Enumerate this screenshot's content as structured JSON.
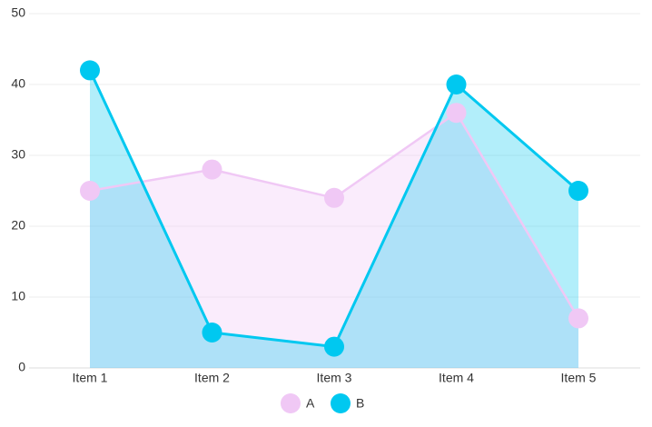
{
  "chart_data": {
    "type": "area",
    "categories": [
      "Item 1",
      "Item 2",
      "Item 3",
      "Item 4",
      "Item 5"
    ],
    "series": [
      {
        "name": "A",
        "color": "#f0c8f5",
        "values": [
          25,
          28,
          24,
          36,
          7
        ]
      },
      {
        "name": "B",
        "color": "#00c8f0",
        "values": [
          42,
          5,
          3,
          40,
          25
        ]
      }
    ],
    "ylim": [
      0,
      50
    ],
    "yticks": [
      0,
      10,
      20,
      30,
      40,
      50
    ],
    "grid": true
  }
}
